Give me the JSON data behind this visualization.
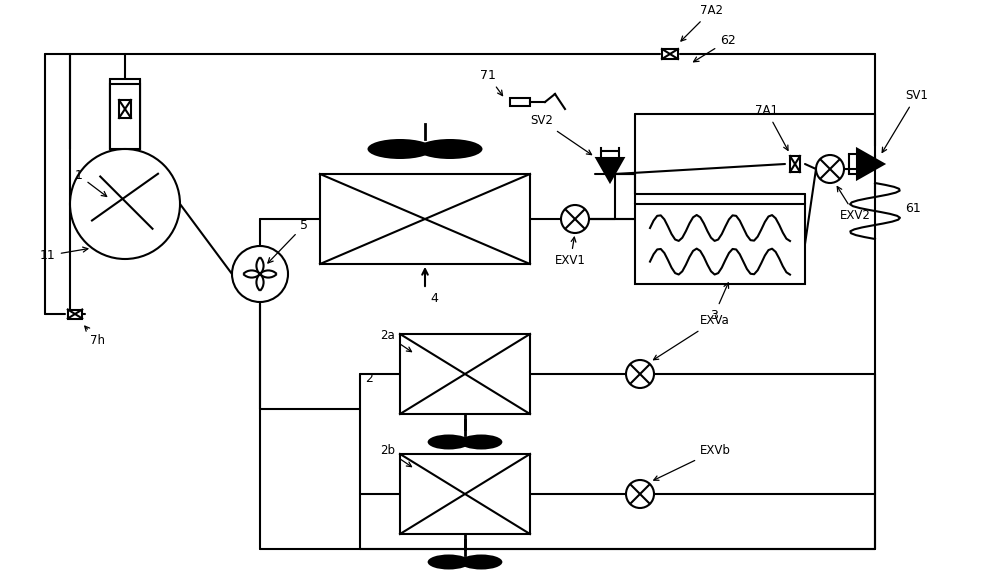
{
  "fig_w": 10.0,
  "fig_h": 5.79,
  "dpi": 100,
  "lc": "#000000",
  "lw": 1.5,
  "bg": "#ffffff",
  "labels": {
    "comp": "1",
    "comp_arrow": "11",
    "pump": "5",
    "outdoor_hx": "4",
    "fan_sensor": "71",
    "ihx": "3",
    "sv2": "SV2",
    "sv1": "SV1",
    "exv1": "EXV1",
    "exv2": "EXV2",
    "exva": "EXVa",
    "exvb": "EXVb",
    "cv7a1": "7A1",
    "cv7a2": "7A2",
    "cv7h": "7h",
    "pipe61": "61",
    "pipe62": "62",
    "idu_a": "2a",
    "idu_b": "2b",
    "idu": "2"
  }
}
